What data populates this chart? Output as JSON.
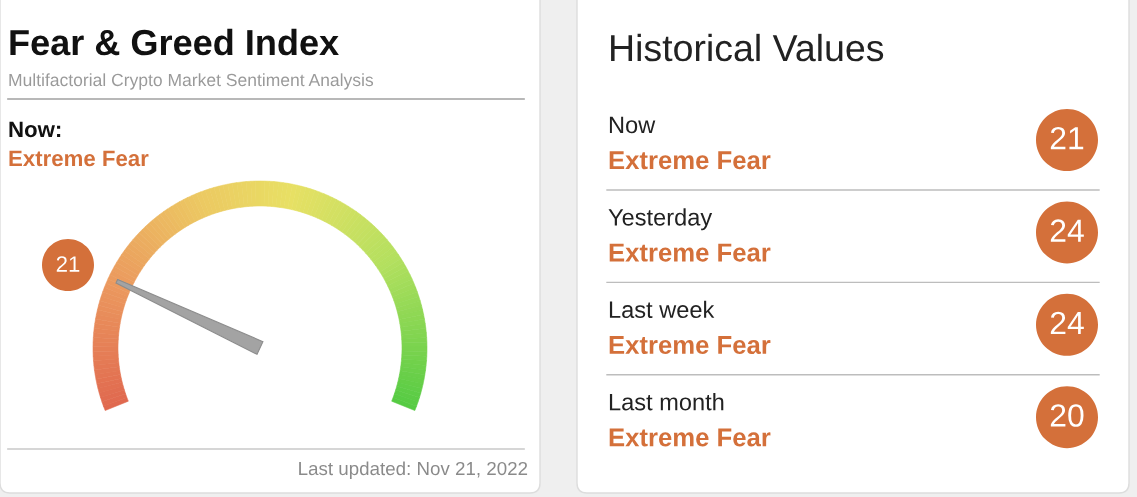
{
  "chart_data": [
    {
      "type": "other",
      "title": "Fear & Greed Index",
      "subtitle": "Multifactorial Crypto Market Sentiment Analysis",
      "annotations": [
        "Now:",
        "Extreme Fear",
        "21",
        "Last updated: Nov 21, 2022"
      ],
      "color": "#d4703a"
    },
    {
      "type": "other",
      "title": "Historical Values",
      "categories": [
        "Now",
        "Yesterday",
        "Last week",
        "Last month"
      ],
      "values": [
        21,
        24,
        24,
        20
      ],
      "annotations": [
        "Extreme Fear",
        "Extreme Fear",
        "Extreme Fear",
        "Extreme Fear"
      ],
      "color": "#d4703a",
      "data_labels": true
    }
  ]
}
